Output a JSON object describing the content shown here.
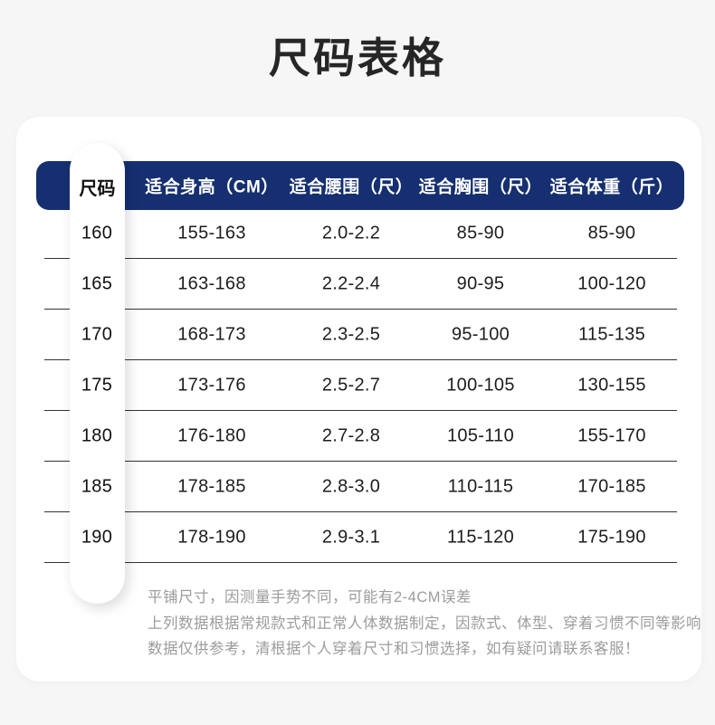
{
  "title": "尺码表格",
  "colors": {
    "page_background": "#f6f6f6",
    "card_background": "#ffffff",
    "header_bar": "#152f70",
    "header_text": "#ffffff",
    "body_text": "#1d1d1d",
    "divider": "#333333",
    "notes_text": "#9c9c9c"
  },
  "chart_data": {
    "type": "table",
    "title": "尺码表格",
    "columns": [
      "尺码",
      "适合身高（CM）",
      "适合腰围（尺）",
      "适合胸围（尺）",
      "适合体重（斤）"
    ],
    "rows": [
      {
        "size": "160",
        "height": "155-163",
        "waist": "2.0-2.2",
        "chest": "85-90",
        "weight": "85-90"
      },
      {
        "size": "165",
        "height": "163-168",
        "waist": "2.2-2.4",
        "chest": "90-95",
        "weight": "100-120"
      },
      {
        "size": "170",
        "height": "168-173",
        "waist": "2.3-2.5",
        "chest": "95-100",
        "weight": "115-135"
      },
      {
        "size": "175",
        "height": "173-176",
        "waist": "2.5-2.7",
        "chest": "100-105",
        "weight": "130-155"
      },
      {
        "size": "180",
        "height": "176-180",
        "waist": "2.7-2.8",
        "chest": "105-110",
        "weight": "155-170"
      },
      {
        "size": "185",
        "height": "178-185",
        "waist": "2.8-3.0",
        "chest": "110-115",
        "weight": "170-185"
      },
      {
        "size": "190",
        "height": "178-190",
        "waist": "2.9-3.1",
        "chest": "115-120",
        "weight": "175-190"
      }
    ]
  },
  "notes": [
    "平铺尺寸，因测量手势不同，可能有2-4CM误差",
    "上列数据根据常规款式和正常人体数据制定，因款式、体型、穿着习惯不同等影响",
    "数据仅供参考，清根据个人穿着尺寸和习惯选择，如有疑问请联系客服！"
  ]
}
